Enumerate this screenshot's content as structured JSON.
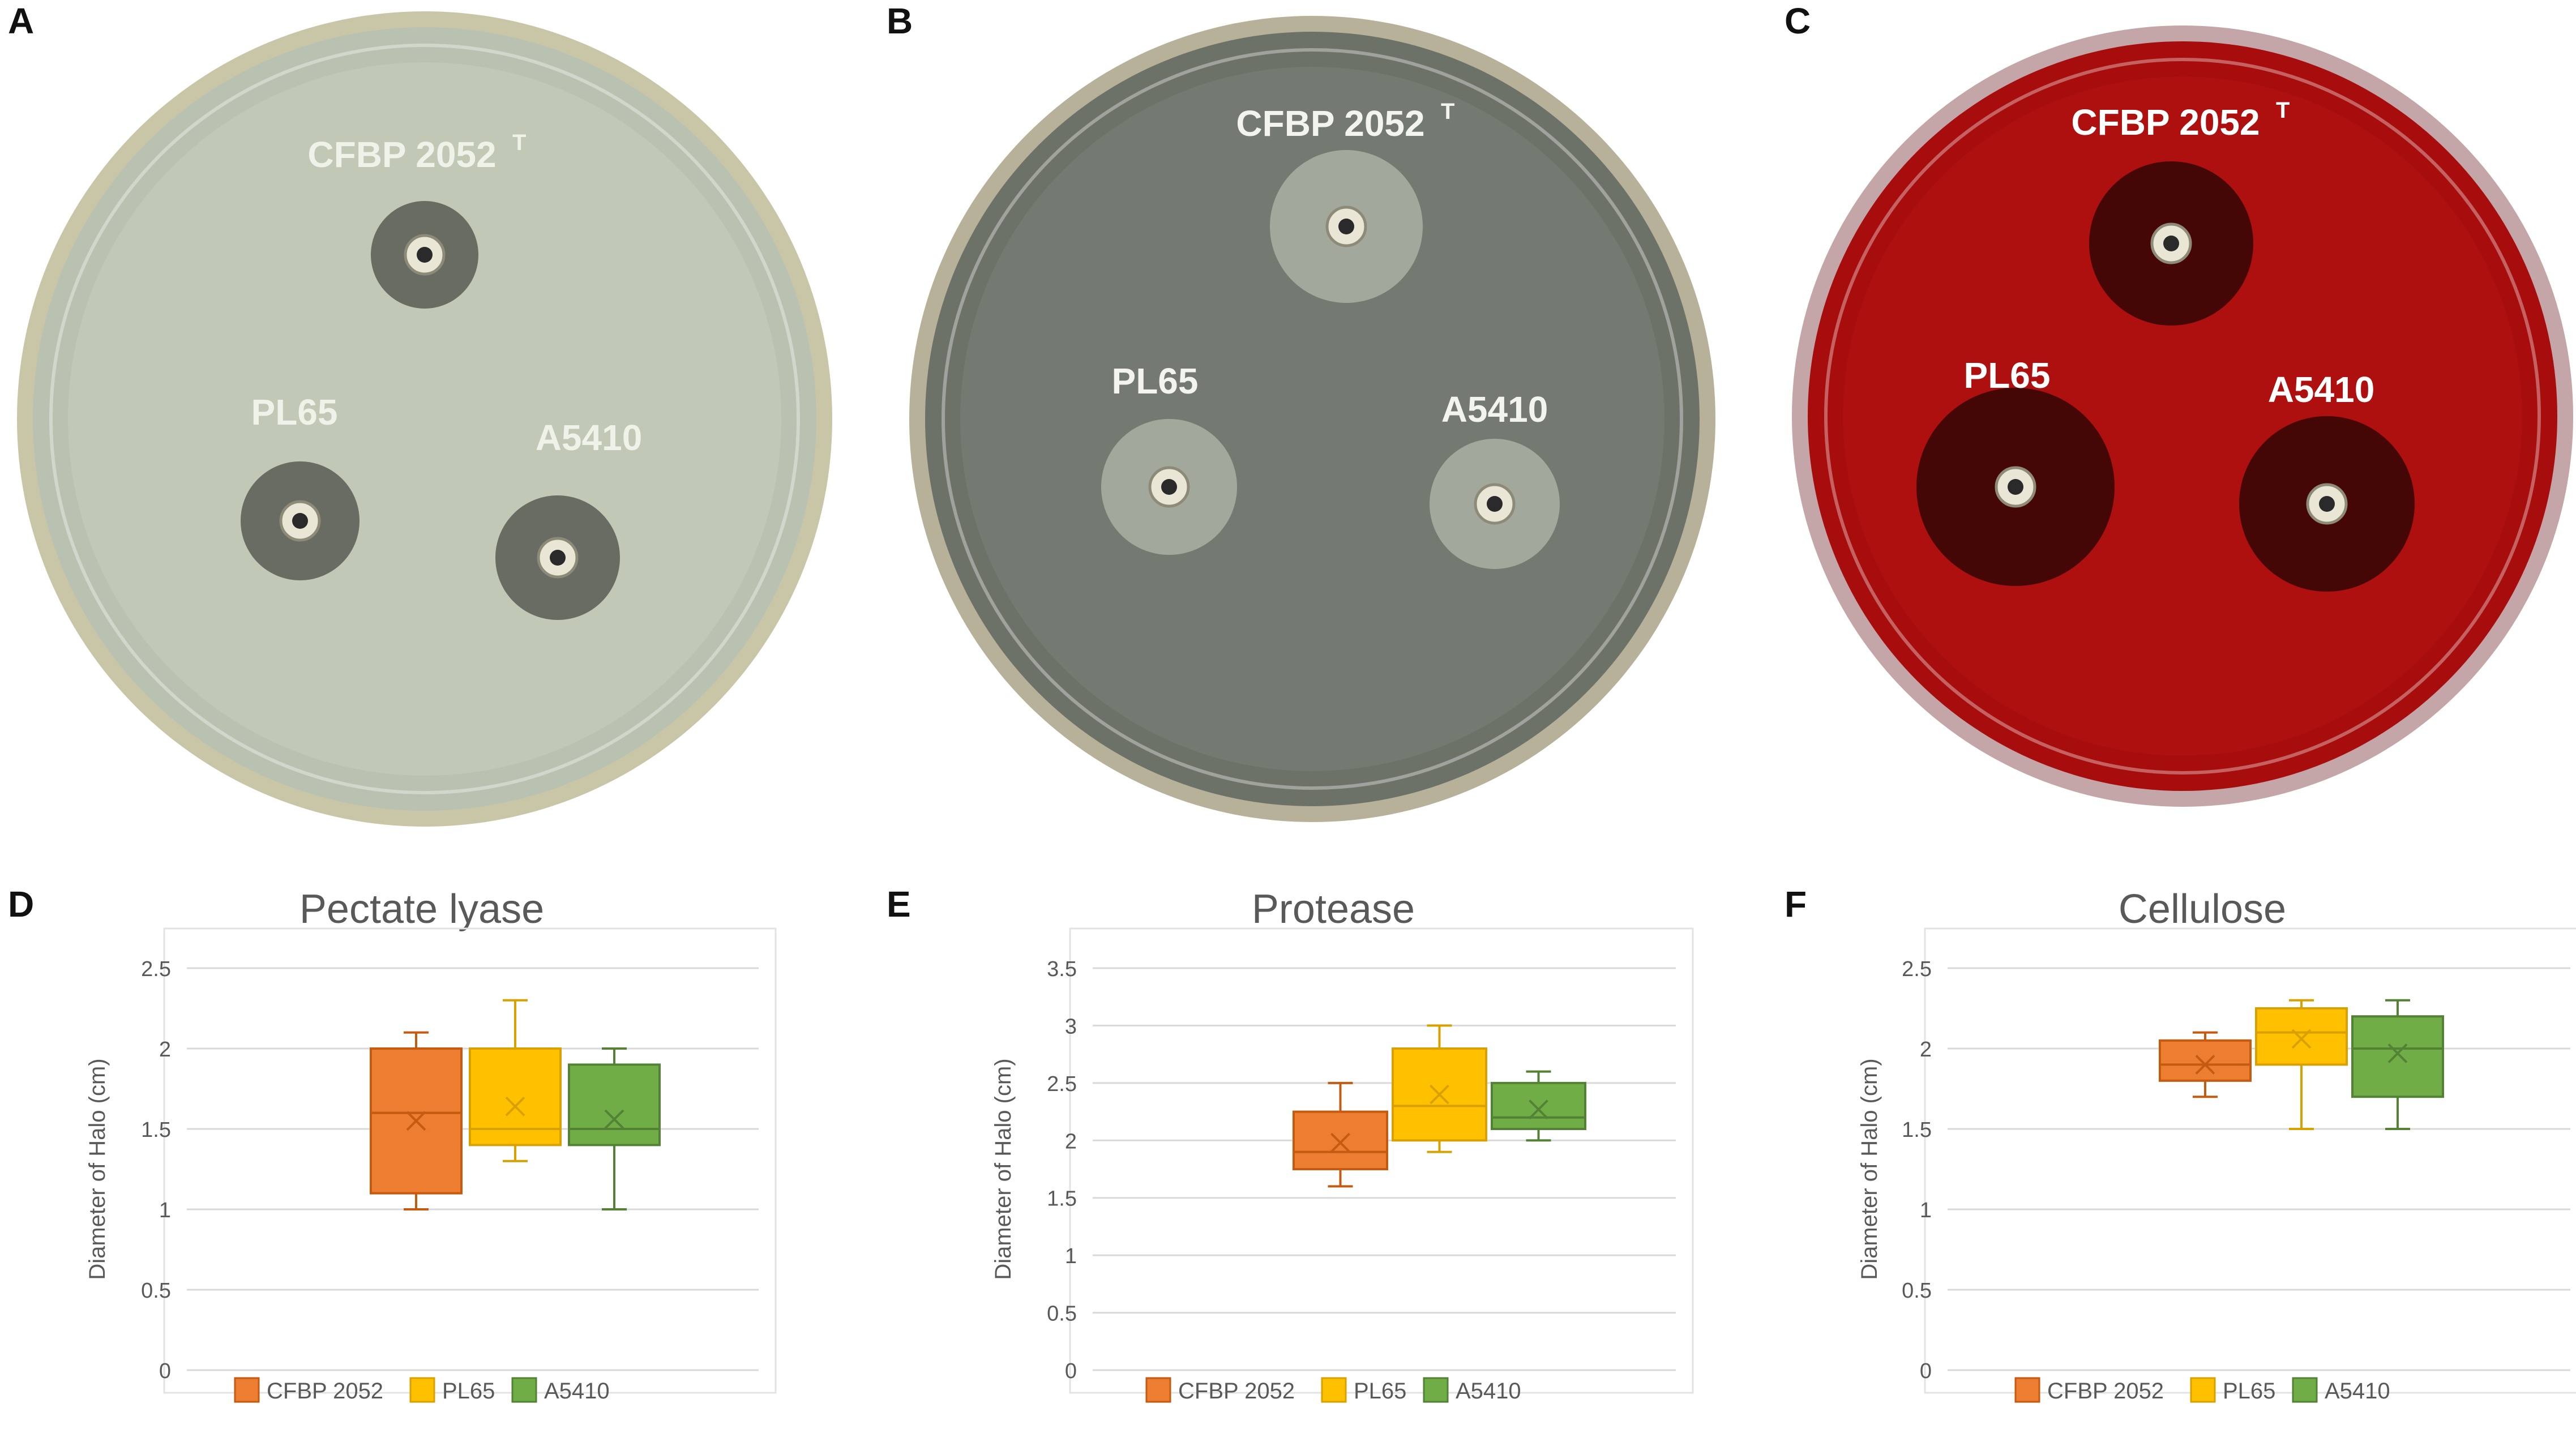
{
  "panels": {
    "a": {
      "letter": "A"
    },
    "b": {
      "letter": "B"
    },
    "c": {
      "letter": "C"
    },
    "d": {
      "letter": "D"
    },
    "e": {
      "letter": "E"
    },
    "f": {
      "letter": "F"
    }
  },
  "plates": [
    {
      "labels": {
        "top": "CFBP 2052",
        "top_sup": "T",
        "left": "PL65",
        "right": "A5410"
      },
      "colors": {
        "rim": "#c9c6a8",
        "agar": "#b9c2b0",
        "agar_inner": "#c6ccb9",
        "halo": "#5e625a",
        "label": "#eef2e8"
      }
    },
    {
      "labels": {
        "top": "CFBP 2052",
        "top_sup": "T",
        "left": "PL65",
        "right": "A5410"
      },
      "colors": {
        "rim": "#b7b19a",
        "agar": "#6d7269",
        "agar_inner": "#7a7f76",
        "halo": "#a9ada2",
        "label": "#f4f4ef"
      }
    },
    {
      "labels": {
        "top": "CFBP 2052",
        "top_sup": "T",
        "left": "PL65",
        "right": "A5410"
      },
      "colors": {
        "rim": "#c4a6a8",
        "agar": "#a80d0d",
        "agar_inner": "#b31111",
        "halo": "#3a0606",
        "label": "#ffffff"
      }
    }
  ],
  "chart_data": [
    {
      "type": "box",
      "title": "Pectate lyase",
      "ylabel": "Diameter of Halo (cm)",
      "ylim": [
        0,
        2.5
      ],
      "yticks": [
        "0",
        "0.5",
        "1",
        "1.5",
        "2",
        "2.5"
      ],
      "legend_position": "bottom",
      "series": [
        {
          "name": "CFBP 2052",
          "color": "#ed7d31",
          "edge": "#c55a11",
          "min": 1.0,
          "q1": 1.1,
          "median": 1.6,
          "q3": 2.0,
          "max": 2.1,
          "mean": 1.55
        },
        {
          "name": "PL65",
          "color": "#ffc000",
          "edge": "#d9a100",
          "min": 1.3,
          "q1": 1.4,
          "median": 1.5,
          "q3": 2.0,
          "max": 2.3,
          "mean": 1.64
        },
        {
          "name": "A5410",
          "color": "#70ad47",
          "edge": "#548235",
          "min": 1.0,
          "q1": 1.4,
          "median": 1.5,
          "q3": 1.9,
          "max": 2.0,
          "mean": 1.56
        }
      ]
    },
    {
      "type": "box",
      "title": "Protease",
      "ylabel": "Diameter of Halo (cm)",
      "ylim": [
        0,
        3.5
      ],
      "yticks": [
        "0",
        "0.5",
        "1",
        "1.5",
        "2",
        "2.5",
        "3",
        "3.5"
      ],
      "legend_position": "bottom",
      "series": [
        {
          "name": "CFBP 2052",
          "color": "#ed7d31",
          "edge": "#c55a11",
          "min": 1.6,
          "q1": 1.75,
          "median": 1.9,
          "q3": 2.25,
          "max": 2.5,
          "mean": 1.98
        },
        {
          "name": "PL65",
          "color": "#ffc000",
          "edge": "#d9a100",
          "min": 1.9,
          "q1": 2.0,
          "median": 2.3,
          "q3": 2.8,
          "max": 3.0,
          "mean": 2.4
        },
        {
          "name": "A5410",
          "color": "#70ad47",
          "edge": "#548235",
          "min": 2.0,
          "q1": 2.1,
          "median": 2.2,
          "q3": 2.5,
          "max": 2.6,
          "mean": 2.27
        }
      ]
    },
    {
      "type": "box",
      "title": "Cellulose",
      "ylabel": "Diameter of Halo (cm)",
      "ylim": [
        0,
        2.5
      ],
      "yticks": [
        "0",
        "0.5",
        "1",
        "1.5",
        "2",
        "2.5"
      ],
      "legend_position": "bottom",
      "series": [
        {
          "name": "CFBP 2052",
          "color": "#ed7d31",
          "edge": "#c55a11",
          "min": 1.7,
          "q1": 1.8,
          "median": 1.9,
          "q3": 2.05,
          "max": 2.1,
          "mean": 1.9
        },
        {
          "name": "PL65",
          "color": "#ffc000",
          "edge": "#d9a100",
          "min": 1.5,
          "q1": 1.9,
          "median": 2.1,
          "q3": 2.25,
          "max": 2.3,
          "mean": 2.06
        },
        {
          "name": "A5410",
          "color": "#70ad47",
          "edge": "#548235",
          "min": 1.5,
          "q1": 1.7,
          "median": 2.0,
          "q3": 2.2,
          "max": 2.3,
          "mean": 1.97
        }
      ]
    }
  ]
}
